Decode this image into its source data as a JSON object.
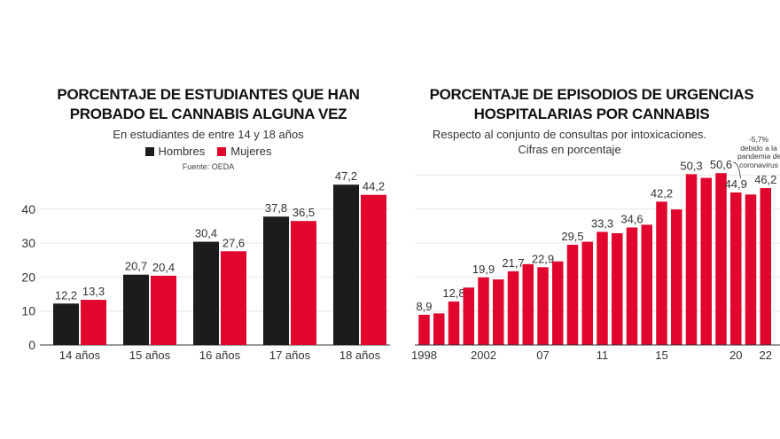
{
  "colors": {
    "hombres": "#1c1c1c",
    "mujeres": "#e0062d",
    "grid": "#e6e6e6"
  },
  "chart_data": [
    {
      "type": "bar",
      "title": "PORCENTAJE DE ESTUDIANTES QUE HAN PROBADO EL CANNABIS ALGUNA VEZ",
      "subtitle": "En estudiantes de entre 14 y 18 años",
      "source": "Fuente: OEDA",
      "legend_position": "top",
      "categories": [
        "14 años",
        "15 años",
        "16 años",
        "17 años",
        "18 años"
      ],
      "series": [
        {
          "name": "Hombres",
          "values": [
            12.2,
            20.7,
            30.4,
            37.8,
            47.2
          ],
          "labels": [
            "12,2",
            "20,7",
            "30,4",
            "37,8",
            "47,2"
          ]
        },
        {
          "name": "Mujeres",
          "values": [
            13.3,
            20.4,
            27.6,
            36.5,
            44.2
          ],
          "labels": [
            "13,3",
            "20,4",
            "27,6",
            "36,5",
            "44,2"
          ]
        }
      ],
      "yticks": [
        "0",
        "10",
        "20",
        "30",
        "40"
      ],
      "ylim": [
        0,
        50
      ],
      "grid": true
    },
    {
      "type": "bar",
      "title": "PORCENTAJE DE EPISODIOS DE URGENCIAS HOSPITALARIAS POR CANNABIS",
      "subtitle": "Respecto al conjunto de consultas por intoxicaciones. Cifras en porcentaje",
      "x": [
        1998,
        1999,
        2000,
        2001,
        2002,
        2003,
        2004,
        2005,
        2007,
        2008,
        2009,
        2010,
        2011,
        2012,
        2013,
        2014,
        2015,
        2016,
        2017,
        2018,
        2019,
        2020,
        2021,
        2022
      ],
      "values": [
        8.9,
        9.3,
        12.8,
        16.9,
        19.9,
        19.3,
        21.7,
        23.8,
        22.9,
        24.6,
        29.5,
        30.4,
        33.3,
        32.9,
        34.6,
        35.4,
        42.2,
        39.9,
        50.3,
        49.2,
        50.6,
        44.9,
        44.3,
        46.2
      ],
      "data_labels": {
        "0": "8,9",
        "2": "12,8",
        "4": "19,9",
        "6": "21,7",
        "8": "22,9",
        "10": "29,5",
        "12": "33,3",
        "14": "34,6",
        "16": "42,2",
        "18": "50,3",
        "20": "50,6",
        "21": "44,9",
        "23": "46,2"
      },
      "xtick_labels": {
        "0": "1998",
        "4": "2002",
        "8": "07",
        "12": "11",
        "16": "15",
        "21": "20",
        "23": "22"
      },
      "annotation": {
        "lines": [
          "-5,7%",
          "debido a la",
          "pandemia de",
          "coronavirus"
        ]
      },
      "ylim": [
        0,
        50
      ],
      "grid": true
    }
  ]
}
